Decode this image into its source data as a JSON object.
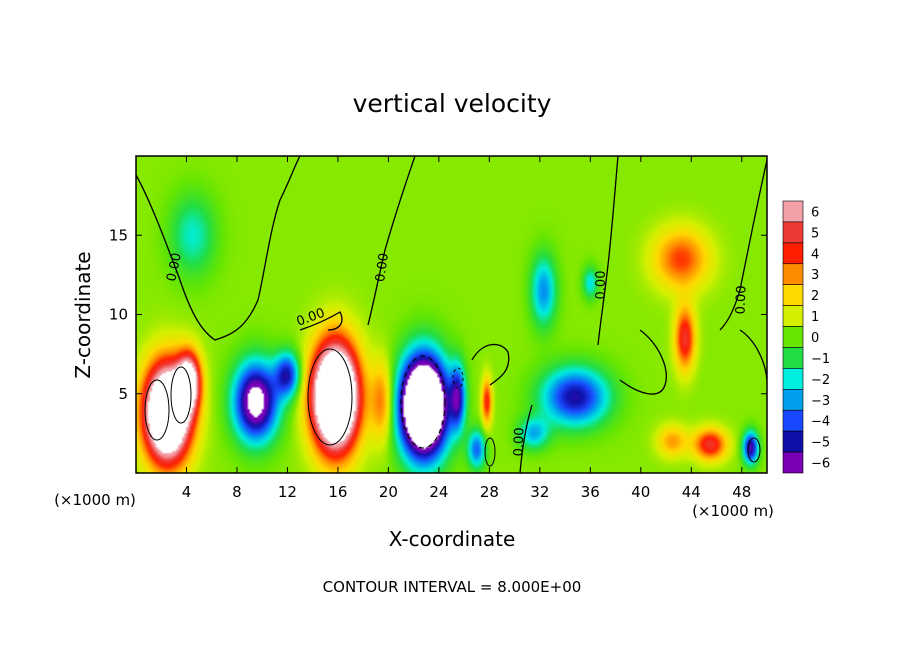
{
  "chart_data": {
    "type": "heatmap",
    "title": "vertical velocity",
    "xlabel": "X-coordinate",
    "ylabel": "Z-coordinate",
    "x_unit_left": "(×1000 m)",
    "x_unit_right": "(×1000 m)",
    "xlim": [
      0,
      50
    ],
    "ylim": [
      0,
      20
    ],
    "x_ticks": [
      4,
      8,
      12,
      16,
      20,
      24,
      28,
      32,
      36,
      40,
      44,
      48
    ],
    "y_ticks": [
      5,
      10,
      15
    ],
    "colorbar": {
      "levels": [
        6,
        5,
        4,
        3,
        2,
        1,
        0,
        -1,
        -2,
        -3,
        -4,
        -5,
        -6
      ],
      "colors": [
        "#f4a0a8",
        "#ee3a36",
        "#ff1e00",
        "#ff8c00",
        "#ffd800",
        "#d4f000",
        "#66e600",
        "#22dd44",
        "#00eedd",
        "#00a0ee",
        "#1a48ff",
        "#1010a8",
        "#7a00b8"
      ]
    },
    "field": {
      "background": 0.3,
      "blobs": [
        {
          "x": 2.5,
          "z": 3.8,
          "sx": 1.8,
          "sz": 3.0,
          "a": 13
        },
        {
          "x": 4.2,
          "z": 5.8,
          "sx": 0.9,
          "sz": 1.8,
          "a": 7
        },
        {
          "x": 15.8,
          "z": 4.8,
          "sx": 1.8,
          "sz": 3.3,
          "a": 14
        },
        {
          "x": 19.5,
          "z": 4.5,
          "sx": 0.9,
          "sz": 2.5,
          "a": 3
        },
        {
          "x": 27.8,
          "z": 4.5,
          "sx": 0.4,
          "sz": 1.5,
          "a": 4
        },
        {
          "x": 43.2,
          "z": 13.5,
          "sx": 2.2,
          "sz": 1.9,
          "a": 3.5
        },
        {
          "x": 43.5,
          "z": 8.5,
          "sx": 0.8,
          "sz": 2.0,
          "a": 4.5
        },
        {
          "x": 45.5,
          "z": 1.8,
          "sx": 1.3,
          "sz": 1.0,
          "a": 4.5
        },
        {
          "x": 42.5,
          "z": 2.0,
          "sx": 1.2,
          "sz": 1.0,
          "a": 2.5
        },
        {
          "x": 9.5,
          "z": 4.5,
          "sx": 1.7,
          "sz": 2.4,
          "a": -8
        },
        {
          "x": 12.0,
          "z": 6.2,
          "sx": 1.0,
          "sz": 1.4,
          "a": -5
        },
        {
          "x": 22.8,
          "z": 4.2,
          "sx": 1.8,
          "sz": 3.0,
          "a": -15
        },
        {
          "x": 25.5,
          "z": 4.8,
          "sx": 0.6,
          "sz": 2.0,
          "a": -5
        },
        {
          "x": 27.0,
          "z": 1.5,
          "sx": 0.7,
          "sz": 1.2,
          "a": -4
        },
        {
          "x": 34.8,
          "z": 4.8,
          "sx": 2.6,
          "sz": 1.8,
          "a": -5.5
        },
        {
          "x": 31.5,
          "z": 2.5,
          "sx": 1.2,
          "sz": 1.0,
          "a": -3
        },
        {
          "x": 32.3,
          "z": 11.5,
          "sx": 1.0,
          "sz": 2.2,
          "a": -3.5
        },
        {
          "x": 36.0,
          "z": 12.0,
          "sx": 0.6,
          "sz": 1.0,
          "a": -2.5
        },
        {
          "x": 48.7,
          "z": 1.6,
          "sx": 0.6,
          "sz": 1.0,
          "a": -6
        },
        {
          "x": 4.5,
          "z": 15.0,
          "sx": 1.8,
          "sz": 2.5,
          "a": -2.2
        }
      ]
    },
    "contour_labels": [
      "0.00",
      "0.00",
      "0.00",
      "0.00",
      "0.00",
      "0.00"
    ],
    "footer": "CONTOUR INTERVAL = 8.000E+00"
  }
}
